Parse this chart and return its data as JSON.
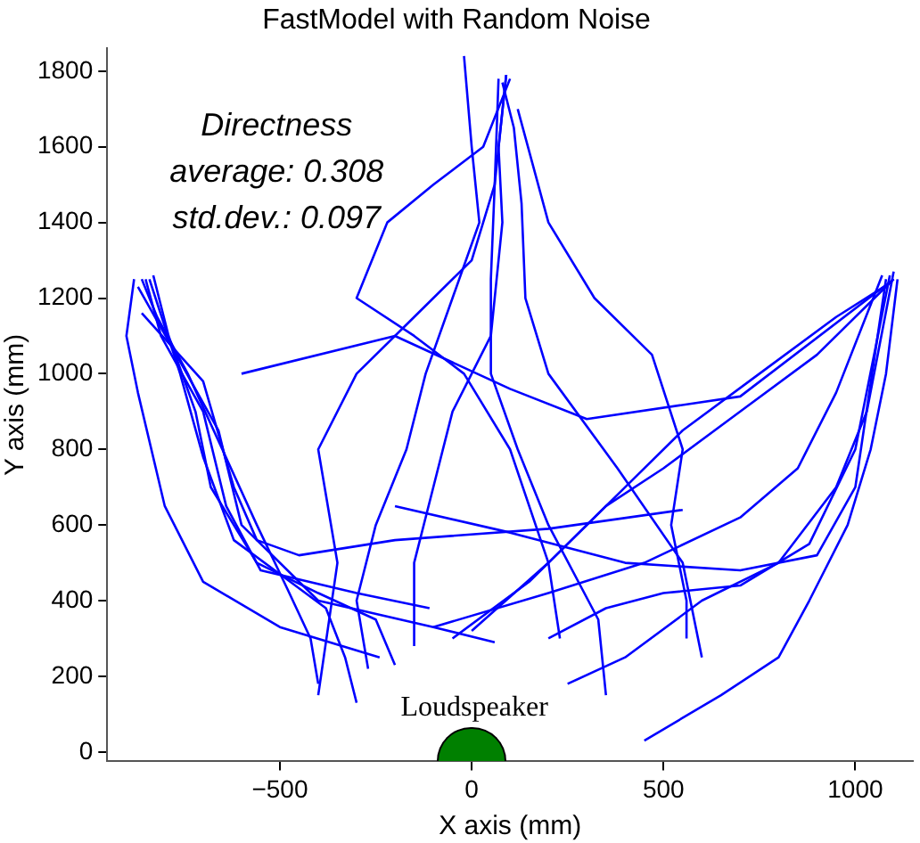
{
  "chart_data": {
    "type": "line",
    "title": "FastModel with Random Noise",
    "xlabel": "X axis (mm)",
    "ylabel": "Y axis (mm)",
    "annotations": [
      "Directness",
      "average: 0.308",
      "std.dev.: 0.097",
      "Loudspeaker"
    ],
    "xlim": [
      -950,
      1150
    ],
    "ylim": [
      -25,
      1860
    ],
    "xticks": [
      {
        "value": -500,
        "label": "−500"
      },
      0,
      500,
      1000
    ],
    "yticks": [
      0,
      200,
      400,
      600,
      800,
      1000,
      1200,
      1400,
      1600,
      1800
    ],
    "grid": false,
    "legend": false,
    "marker": "none",
    "line_style": "solid",
    "series": [
      {
        "color": "#0000ff",
        "x": [
          -400,
          -420,
          -480,
          -560,
          -650,
          -740,
          -820,
          -860
        ],
        "values": [
          180,
          300,
          430,
          600,
          800,
          1000,
          1150,
          1250
        ]
      },
      {
        "color": "#0000ff",
        "x": [
          -300,
          -330,
          -380,
          -500,
          -620,
          -700,
          -760,
          -840
        ],
        "values": [
          130,
          250,
          380,
          470,
          560,
          780,
          1000,
          1250
        ]
      },
      {
        "color": "#0000ff",
        "x": [
          -200,
          -250,
          -400,
          -560,
          -680,
          -720,
          -790,
          -830
        ],
        "values": [
          230,
          350,
          420,
          500,
          700,
          900,
          1100,
          1260
        ]
      },
      {
        "color": "#0000ff",
        "x": [
          -110,
          -300,
          -550,
          -640,
          -700,
          -810,
          -850
        ],
        "values": [
          380,
          420,
          480,
          650,
          900,
          1100,
          1250
        ]
      },
      {
        "color": "#0000ff",
        "x": [
          60,
          -100,
          -400,
          -600,
          -660,
          -770,
          -870
        ],
        "values": [
          290,
          330,
          400,
          600,
          850,
          1050,
          1230
        ]
      },
      {
        "color": "#0000ff",
        "x": [
          550,
          200,
          -200,
          -450,
          -560,
          -620,
          -700,
          -860
        ],
        "values": [
          640,
          590,
          560,
          520,
          560,
          700,
          980,
          1160
        ]
      },
      {
        "color": "#0000ff",
        "x": [
          -240,
          -500,
          -700,
          -800,
          -870,
          -900,
          -880
        ],
        "values": [
          250,
          330,
          450,
          650,
          950,
          1100,
          1250
        ]
      },
      {
        "color": "#0000ff",
        "x": [
          -270,
          -300,
          -250,
          -170,
          -120,
          -50,
          20,
          0,
          -20
        ],
        "values": [
          220,
          400,
          600,
          800,
          1000,
          1200,
          1400,
          1600,
          1840
        ]
      },
      {
        "color": "#0000ff",
        "x": [
          -150,
          -150,
          -100,
          -50,
          50,
          80,
          70,
          90
        ],
        "values": [
          280,
          500,
          700,
          900,
          1100,
          1400,
          1600,
          1790
        ]
      },
      {
        "color": "#0000ff",
        "x": [
          350,
          330,
          200,
          120,
          50,
          50,
          60,
          70
        ],
        "values": [
          150,
          350,
          600,
          800,
          1000,
          1250,
          1500,
          1780
        ]
      },
      {
        "color": "#0000ff",
        "x": [
          230,
          200,
          100,
          -20,
          -150,
          -300,
          -220,
          -100,
          30,
          100
        ],
        "values": [
          300,
          500,
          800,
          1000,
          1100,
          1200,
          1400,
          1500,
          1600,
          1780
        ]
      },
      {
        "color": "#0000ff",
        "x": [
          -400,
          -350,
          -400,
          -300,
          -150,
          0,
          60,
          90
        ],
        "values": [
          150,
          500,
          800,
          1000,
          1150,
          1300,
          1500,
          1790
        ]
      },
      {
        "color": "#0000ff",
        "x": [
          600,
          550,
          380,
          200,
          140,
          130,
          110,
          80
        ],
        "values": [
          250,
          500,
          750,
          1000,
          1200,
          1450,
          1650,
          1770
        ]
      },
      {
        "color": "#0000ff",
        "x": [
          560,
          560,
          520,
          550,
          470,
          320,
          200,
          120
        ],
        "values": [
          300,
          400,
          600,
          800,
          1050,
          1200,
          1400,
          1700
        ]
      },
      {
        "color": "#0000ff",
        "x": [
          450,
          650,
          800,
          880,
          980,
          1040,
          1080,
          1110
        ],
        "values": [
          30,
          150,
          250,
          400,
          600,
          800,
          1000,
          1250
        ]
      },
      {
        "color": "#0000ff",
        "x": [
          250,
          400,
          600,
          800,
          950,
          1030,
          1100
        ],
        "values": [
          180,
          250,
          400,
          500,
          700,
          900,
          1270
        ]
      },
      {
        "color": "#0000ff",
        "x": [
          200,
          350,
          500,
          700,
          880,
          1000,
          1090
        ],
        "values": [
          300,
          380,
          420,
          440,
          550,
          800,
          1260
        ]
      },
      {
        "color": "#0000ff",
        "x": [
          -100,
          200,
          450,
          700,
          850,
          950,
          1070
        ],
        "values": [
          330,
          420,
          500,
          620,
          750,
          950,
          1260
        ]
      },
      {
        "color": "#0000ff",
        "x": [
          0,
          200,
          350,
          500,
          700,
          900,
          1100
        ],
        "values": [
          320,
          500,
          650,
          750,
          900,
          1050,
          1250
        ]
      },
      {
        "color": "#0000ff",
        "x": [
          -50,
          150,
          300,
          550,
          750,
          950,
          1090
        ],
        "values": [
          300,
          450,
          600,
          850,
          1000,
          1150,
          1240
        ]
      },
      {
        "color": "#0000ff",
        "x": [
          -600,
          -200,
          100,
          300,
          700,
          1100
        ],
        "values": [
          1000,
          1100,
          960,
          880,
          940,
          1250
        ]
      },
      {
        "color": "#0000ff",
        "x": [
          -200,
          100,
          400,
          700,
          900,
          1000,
          1080
        ],
        "values": [
          650,
          580,
          500,
          480,
          520,
          700,
          1250
        ]
      }
    ]
  }
}
